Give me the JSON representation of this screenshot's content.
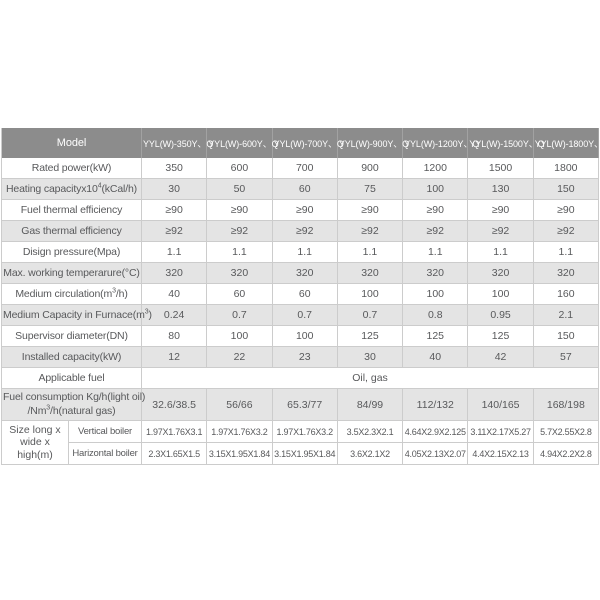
{
  "colors": {
    "header_bg": "#8c8c8c",
    "header_text": "#ffffff",
    "stripe_bg": "#e4e4e4",
    "row_bg": "#ffffff",
    "border": "#cccccc",
    "header_divider": "#a2a2a2",
    "text": "#58595b",
    "page_bg": "#ffffff"
  },
  "table": {
    "header": {
      "model_label": "Model",
      "columns": [
        "YYL(W)-350Y、Q",
        "YYL(W)-600Y、Q",
        "YYL(W)-700Y、Q",
        "YYL(W)-900Y、Q",
        "YYL(W)-1200Y、Q",
        "YYL(W)-1500Y、Q",
        "YYL(W)-1800Y、Q"
      ]
    },
    "rows": [
      {
        "label": "Rated power(kW)",
        "values": [
          "350",
          "600",
          "700",
          "900",
          "1200",
          "1500",
          "1800"
        ]
      },
      {
        "label_pre": "Heating capacityx10",
        "label_sup": "4",
        "label_post": "(kCal/h)",
        "values": [
          "30",
          "50",
          "60",
          "75",
          "100",
          "130",
          "150"
        ]
      },
      {
        "label": "Fuel thermal efficiency",
        "values": [
          "≥90",
          "≥90",
          "≥90",
          "≥90",
          "≥90",
          "≥90",
          "≥90"
        ]
      },
      {
        "label": "Gas thermal efficiency",
        "values": [
          "≥92",
          "≥92",
          "≥92",
          "≥92",
          "≥92",
          "≥92",
          "≥92"
        ]
      },
      {
        "label": "Disign pressure(Mpa)",
        "values": [
          "1.1",
          "1.1",
          "1.1",
          "1.1",
          "1.1",
          "1.1",
          "1.1"
        ]
      },
      {
        "label": "Max. working temperarure(°C)",
        "values": [
          "320",
          "320",
          "320",
          "320",
          "320",
          "320",
          "320"
        ]
      },
      {
        "label_pre": "Medium circulation(m",
        "label_sup": "3",
        "label_post": "/h)",
        "values": [
          "40",
          "60",
          "60",
          "100",
          "100",
          "100",
          "160"
        ]
      },
      {
        "label_pre": "Medium Capacity in Furnace(m",
        "label_sup": "3",
        "label_post": ")",
        "values": [
          "0.24",
          "0.7",
          "0.7",
          "0.7",
          "0.8",
          "0.95",
          "2.1"
        ]
      },
      {
        "label": "Supervisor diameter(DN)",
        "values": [
          "80",
          "100",
          "100",
          "125",
          "125",
          "125",
          "150"
        ]
      },
      {
        "label": "Installed capacity(kW)",
        "values": [
          "12",
          "22",
          "23",
          "30",
          "40",
          "42",
          "57"
        ]
      }
    ],
    "applicable_fuel": {
      "label": "Applicable fuel",
      "value": "Oil, gas"
    },
    "fuel_consumption": {
      "label_line1": "Fuel consumption Kg/h(light oil)",
      "label_line2_pre": "/Nm",
      "label_line2_sup": "3",
      "label_line2_post": "/h(natural gas)",
      "values": [
        "32.6/38.5",
        "56/66",
        "65.3/77",
        "84/99",
        "112/132",
        "140/165",
        "168/198"
      ]
    },
    "size": {
      "label_line1": "Size",
      "label_line2": "long x wide",
      "label_line3": "x high(m)",
      "vertical": {
        "label": "Vertical boiler",
        "values": [
          "1.97X1.76X3.1",
          "1.97X1.76X3.2",
          "1.97X1.76X3.2",
          "3.5X2.3X2.1",
          "4.64X2.9X2.125",
          "3.11X2.17X5.27",
          "5.7X2.55X2.8"
        ]
      },
      "horizontal": {
        "label": "Harizontal boiler",
        "values": [
          "2.3X1.65X1.5",
          "3.15X1.95X1.84",
          "3.15X1.95X1.84",
          "3.6X2.1X2",
          "4.05X2.13X2.07",
          "4.4X2.15X2.13",
          "4.94X2.2X2.8"
        ]
      }
    }
  }
}
